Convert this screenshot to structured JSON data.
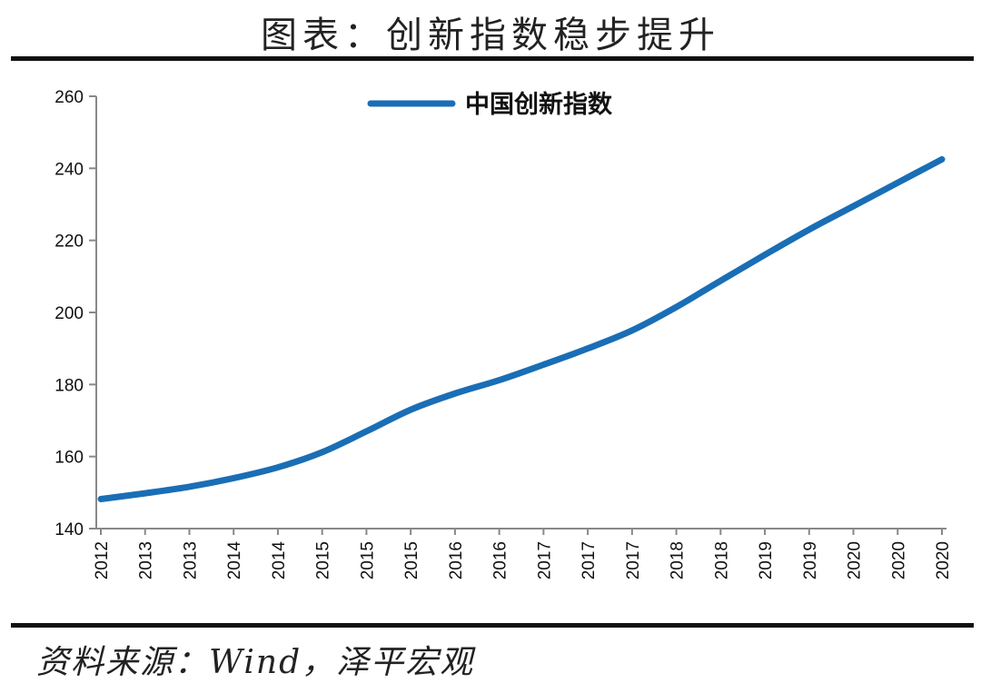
{
  "header": {
    "title": "图表：创新指数稳步提升"
  },
  "footer": {
    "source": "资料来源：Wind，泽平宏观"
  },
  "chart_data": {
    "type": "line",
    "title": "",
    "xlabel": "",
    "ylabel": "",
    "ylim": [
      140,
      260
    ],
    "yticks": [
      140,
      160,
      180,
      200,
      220,
      240,
      260
    ],
    "grid": false,
    "legend_position": "top-center",
    "colors": {
      "series": "#1a6eb5",
      "axis": "#888888"
    },
    "x": [
      "2012",
      "2013",
      "2013",
      "2014",
      "2014",
      "2015",
      "2015",
      "2015",
      "2016",
      "2016",
      "2017",
      "2017",
      "2017",
      "2018",
      "2018",
      "2019",
      "2019",
      "2020",
      "2020",
      "2020"
    ],
    "series": [
      {
        "name": "中国创新指数",
        "values": [
          148.2,
          149.8,
          151.6,
          154.0,
          157.0,
          161.2,
          167.0,
          173.0,
          177.5,
          181.2,
          185.5,
          190.0,
          195.0,
          201.5,
          208.8,
          216.0,
          223.0,
          229.5,
          236.0,
          242.5
        ]
      }
    ]
  }
}
